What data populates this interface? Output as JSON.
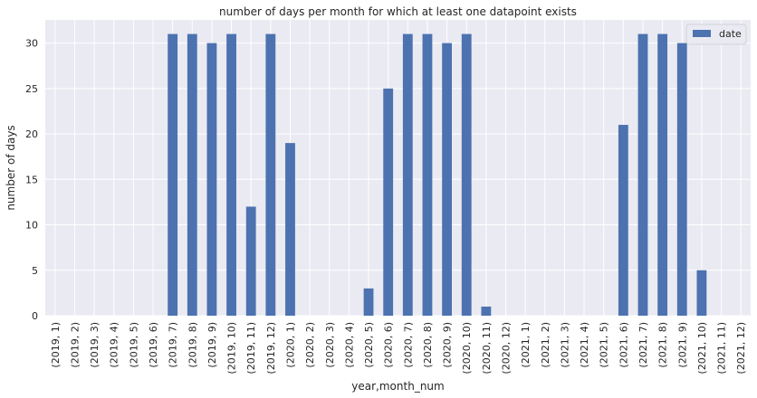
{
  "chart_data": {
    "type": "bar",
    "title": "number of days per month for which at least one datapoint exists",
    "xlabel": "year,month_num",
    "ylabel": "number of days",
    "categories": [
      "(2019, 1)",
      "(2019, 2)",
      "(2019, 3)",
      "(2019, 4)",
      "(2019, 5)",
      "(2019, 6)",
      "(2019, 7)",
      "(2019, 8)",
      "(2019, 9)",
      "(2019, 10)",
      "(2019, 11)",
      "(2019, 12)",
      "(2020, 1)",
      "(2020, 2)",
      "(2020, 3)",
      "(2020, 4)",
      "(2020, 5)",
      "(2020, 6)",
      "(2020, 7)",
      "(2020, 8)",
      "(2020, 9)",
      "(2020, 10)",
      "(2020, 11)",
      "(2020, 12)",
      "(2021, 1)",
      "(2021, 2)",
      "(2021, 3)",
      "(2021, 4)",
      "(2021, 5)",
      "(2021, 6)",
      "(2021, 7)",
      "(2021, 8)",
      "(2021, 9)",
      "(2021, 10)",
      "(2021, 11)",
      "(2021, 12)"
    ],
    "series": [
      {
        "name": "date",
        "color": "#4c72b0",
        "values": [
          0,
          0,
          0,
          0,
          0,
          0,
          31,
          31,
          30,
          31,
          12,
          31,
          19,
          0,
          0,
          0,
          3,
          25,
          31,
          31,
          30,
          31,
          1,
          0,
          0,
          0,
          0,
          0,
          0,
          21,
          31,
          31,
          30,
          5,
          0,
          0
        ]
      }
    ],
    "ylim": [
      0,
      32.55
    ],
    "yticks": [
      0,
      5,
      10,
      15,
      20,
      25,
      30
    ],
    "grid": true,
    "legend_position": "top-right",
    "background_color": "#eaeaf2",
    "grid_color": "#ffffff"
  }
}
